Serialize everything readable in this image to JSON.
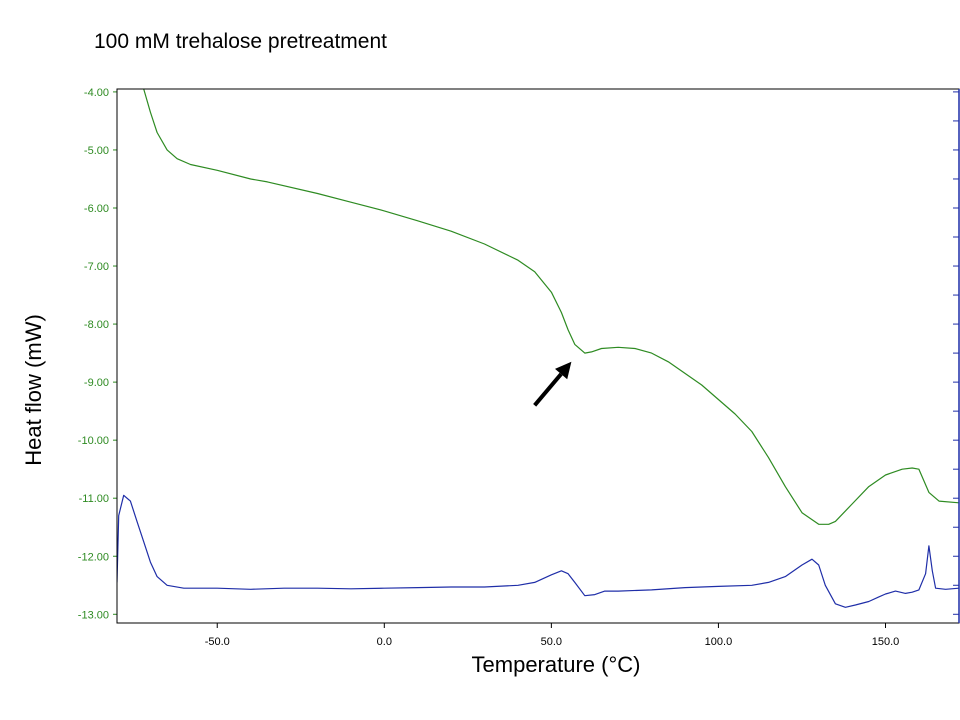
{
  "chart_data": {
    "type": "line",
    "title": "100 mM trehalose pretreatment",
    "xlabel": "Temperature (°C)",
    "ylabel": "Heat flow (mW)",
    "xlim": [
      -80,
      172
    ],
    "ylim": [
      -13.15,
      -3.95
    ],
    "xticks": [
      -50,
      0,
      50,
      100,
      150
    ],
    "xtick_labels": [
      "-50.0",
      "0.0",
      "50.0",
      "100.0",
      "150.0"
    ],
    "yticks": [
      -4,
      -5,
      -6,
      -7,
      -8,
      -9,
      -10,
      -11,
      -12,
      -13
    ],
    "ytick_labels": [
      "-4.00",
      "-5.00",
      "-6.00",
      "-7.00",
      "-8.00",
      "-9.00",
      "-10.00",
      "-11.00",
      "-12.00",
      "-13.00"
    ],
    "grid": false,
    "series": [
      {
        "color": "#2e8b22",
        "points": [
          [
            -72,
            -3.95
          ],
          [
            -70,
            -4.35
          ],
          [
            -68,
            -4.7
          ],
          [
            -65,
            -5.0
          ],
          [
            -62,
            -5.15
          ],
          [
            -58,
            -5.25
          ],
          [
            -50,
            -5.35
          ],
          [
            -40,
            -5.5
          ],
          [
            -35,
            -5.55
          ],
          [
            -20,
            -5.75
          ],
          [
            -10,
            -5.9
          ],
          [
            0,
            -6.05
          ],
          [
            10,
            -6.22
          ],
          [
            20,
            -6.4
          ],
          [
            30,
            -6.62
          ],
          [
            40,
            -6.9
          ],
          [
            45,
            -7.1
          ],
          [
            50,
            -7.45
          ],
          [
            53,
            -7.8
          ],
          [
            55,
            -8.1
          ],
          [
            57,
            -8.35
          ],
          [
            60,
            -8.5
          ],
          [
            62,
            -8.48
          ],
          [
            65,
            -8.42
          ],
          [
            70,
            -8.4
          ],
          [
            75,
            -8.42
          ],
          [
            80,
            -8.5
          ],
          [
            85,
            -8.65
          ],
          [
            90,
            -8.85
          ],
          [
            95,
            -9.05
          ],
          [
            100,
            -9.3
          ],
          [
            105,
            -9.55
          ],
          [
            110,
            -9.85
          ],
          [
            115,
            -10.3
          ],
          [
            120,
            -10.8
          ],
          [
            125,
            -11.25
          ],
          [
            130,
            -11.45
          ],
          [
            133,
            -11.45
          ],
          [
            135,
            -11.4
          ],
          [
            140,
            -11.1
          ],
          [
            145,
            -10.8
          ],
          [
            150,
            -10.6
          ],
          [
            155,
            -10.5
          ],
          [
            158,
            -10.48
          ],
          [
            160,
            -10.5
          ],
          [
            163,
            -10.9
          ],
          [
            166,
            -11.05
          ],
          [
            172,
            -11.08
          ]
        ]
      },
      {
        "color": "#1f2ea8",
        "points": [
          [
            -80,
            -12.45
          ],
          [
            -79.5,
            -11.3
          ],
          [
            -78,
            -10.95
          ],
          [
            -76,
            -11.05
          ],
          [
            -74,
            -11.4
          ],
          [
            -72,
            -11.75
          ],
          [
            -70,
            -12.1
          ],
          [
            -68,
            -12.35
          ],
          [
            -65,
            -12.5
          ],
          [
            -60,
            -12.55
          ],
          [
            -50,
            -12.55
          ],
          [
            -40,
            -12.57
          ],
          [
            -30,
            -12.55
          ],
          [
            -20,
            -12.55
          ],
          [
            -10,
            -12.56
          ],
          [
            0,
            -12.55
          ],
          [
            10,
            -12.54
          ],
          [
            20,
            -12.53
          ],
          [
            30,
            -12.53
          ],
          [
            40,
            -12.5
          ],
          [
            45,
            -12.45
          ],
          [
            50,
            -12.32
          ],
          [
            53,
            -12.25
          ],
          [
            55,
            -12.3
          ],
          [
            57,
            -12.45
          ],
          [
            60,
            -12.68
          ],
          [
            63,
            -12.66
          ],
          [
            66,
            -12.6
          ],
          [
            70,
            -12.6
          ],
          [
            80,
            -12.58
          ],
          [
            90,
            -12.54
          ],
          [
            100,
            -12.52
          ],
          [
            110,
            -12.5
          ],
          [
            115,
            -12.45
          ],
          [
            120,
            -12.35
          ],
          [
            125,
            -12.15
          ],
          [
            128,
            -12.05
          ],
          [
            130,
            -12.15
          ],
          [
            132,
            -12.5
          ],
          [
            135,
            -12.82
          ],
          [
            138,
            -12.88
          ],
          [
            141,
            -12.84
          ],
          [
            145,
            -12.78
          ],
          [
            148,
            -12.7
          ],
          [
            150,
            -12.65
          ],
          [
            153,
            -12.6
          ],
          [
            156,
            -12.64
          ],
          [
            158,
            -12.62
          ],
          [
            160,
            -12.58
          ],
          [
            162,
            -12.3
          ],
          [
            163,
            -11.82
          ],
          [
            164,
            -12.25
          ],
          [
            165,
            -12.55
          ],
          [
            168,
            -12.57
          ],
          [
            172,
            -12.55
          ]
        ]
      }
    ],
    "annotations": [
      {
        "type": "arrow",
        "color": "#000000",
        "from": [
          45,
          -9.4
        ],
        "to": [
          56,
          -8.65
        ]
      }
    ]
  }
}
